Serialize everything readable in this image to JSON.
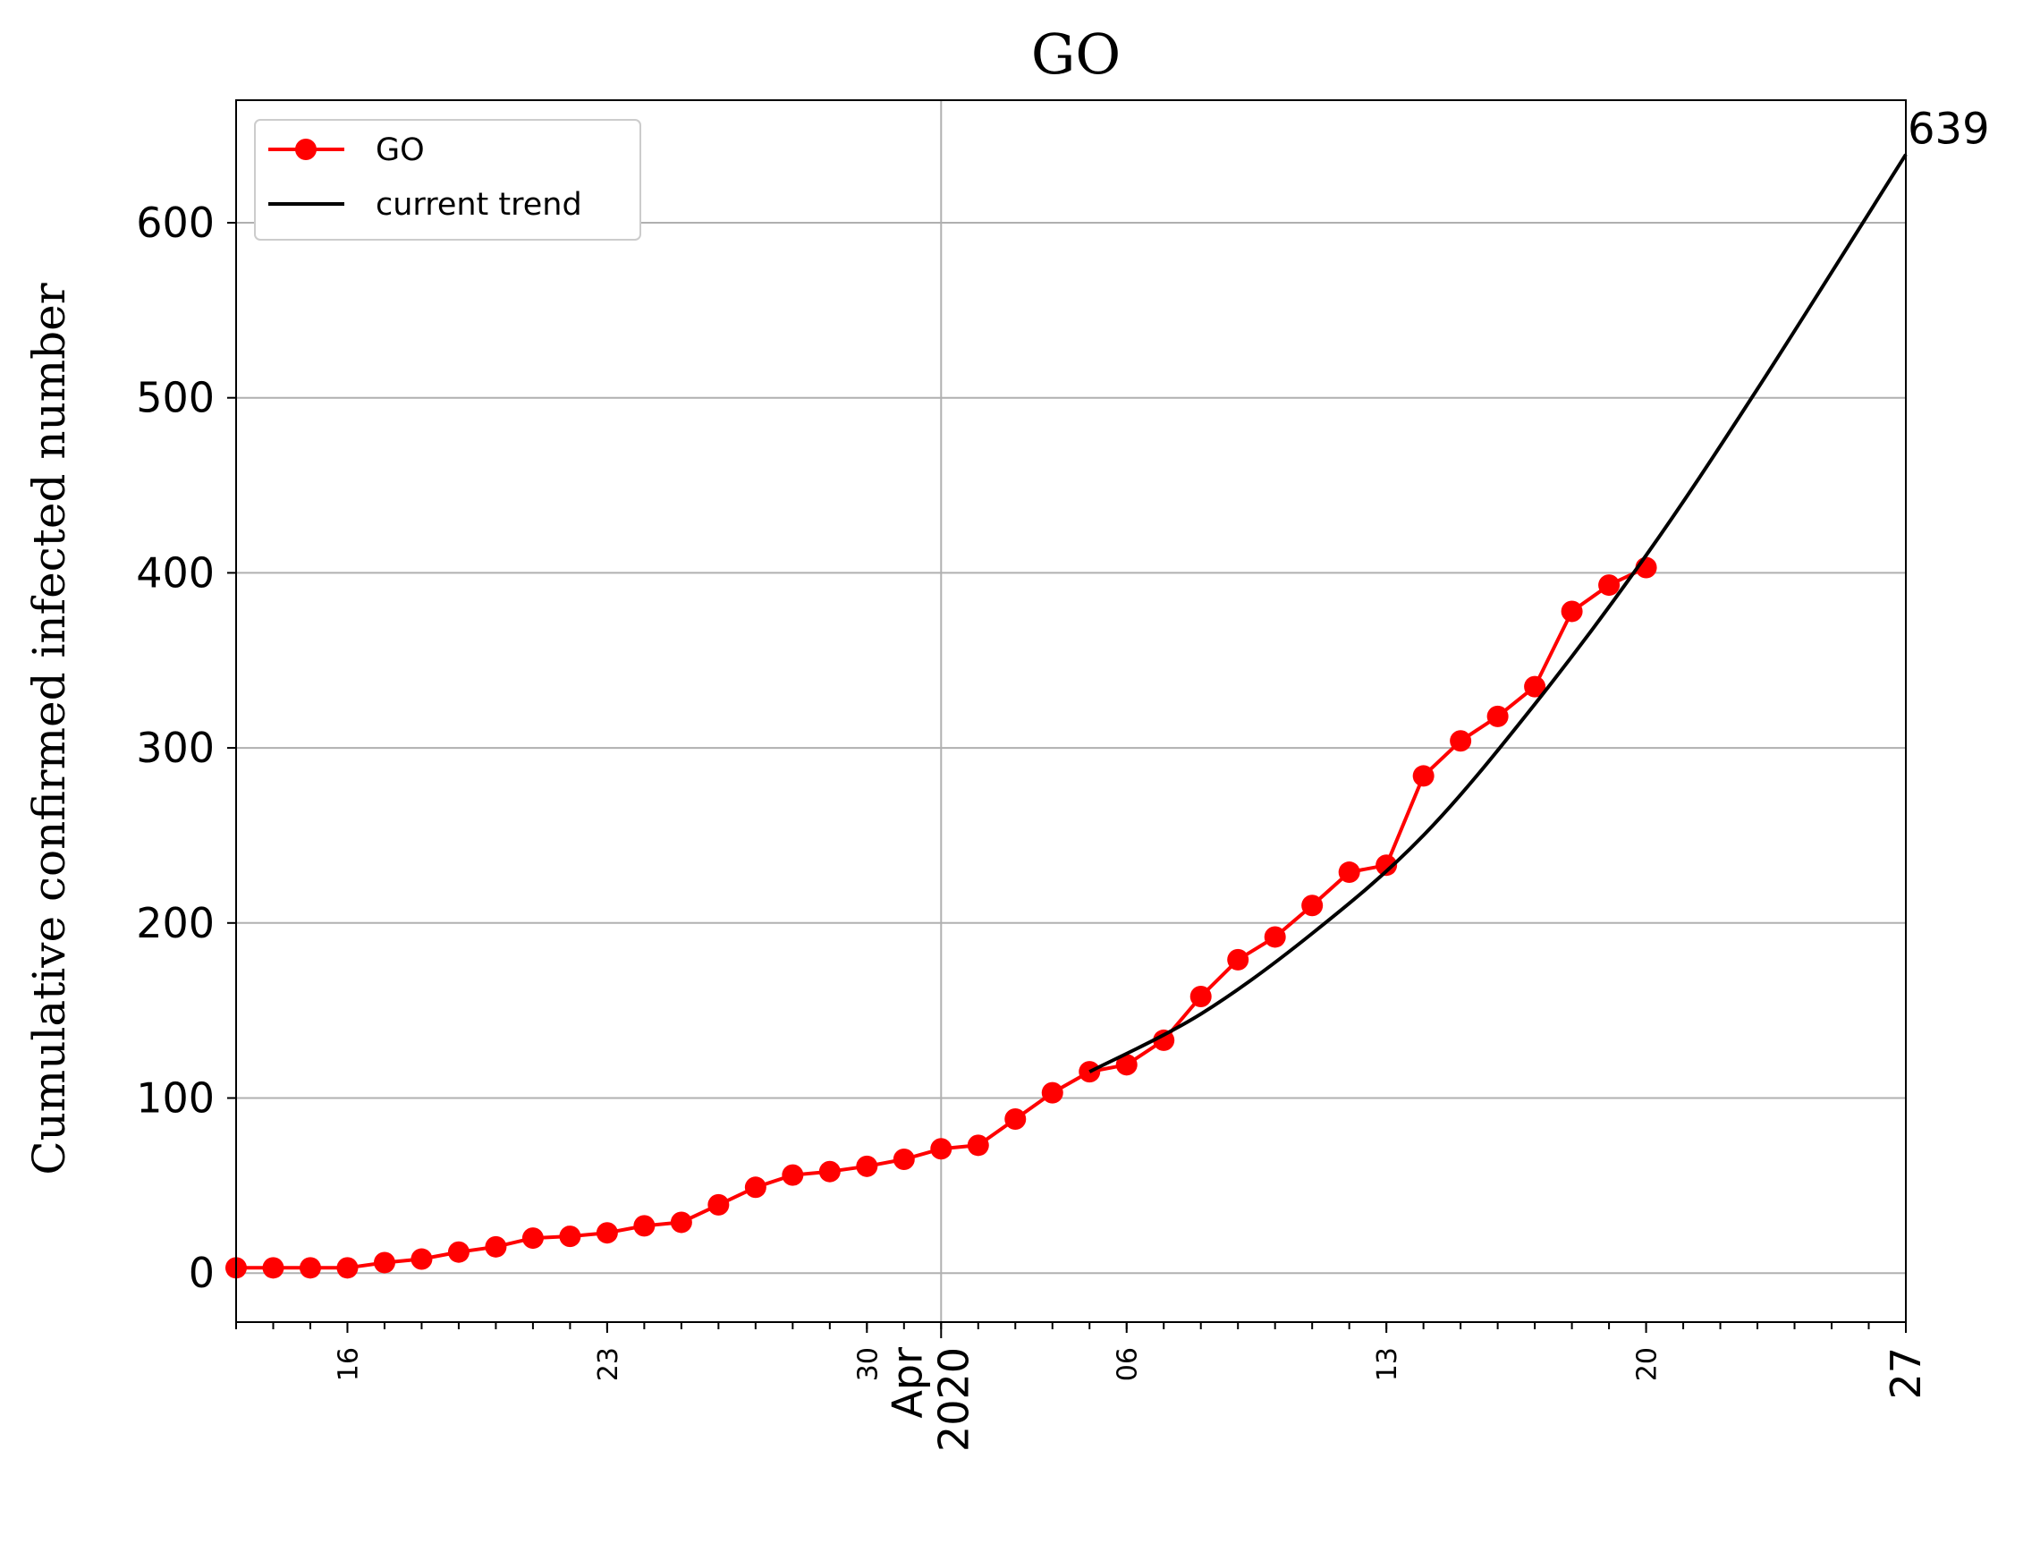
{
  "chart_data": {
    "type": "line",
    "title": "GO",
    "xlabel": "",
    "ylabel": "Cumulative confirmed infected number",
    "ylim": [
      -28,
      670
    ],
    "xlim": [
      "2020-03-13",
      "2020-04-27"
    ],
    "grid": true,
    "legend_position": "top-left",
    "y_ticks": [
      0,
      100,
      200,
      300,
      400,
      500,
      600
    ],
    "x_ticks": [
      {
        "date": "2020-03-16",
        "label": "16"
      },
      {
        "date": "2020-03-23",
        "label": "23"
      },
      {
        "date": "2020-03-30",
        "label": "30"
      },
      {
        "date": "2020-04-01",
        "label": "Apr\n2020"
      },
      {
        "date": "2020-04-06",
        "label": "06"
      },
      {
        "date": "2020-04-13",
        "label": "13"
      },
      {
        "date": "2020-04-20",
        "label": "20"
      },
      {
        "date": "2020-04-27",
        "label": "27"
      }
    ],
    "series": [
      {
        "name": "GO",
        "color": "#ff0000",
        "marker": "circle",
        "x": [
          "2020-03-13",
          "2020-03-14",
          "2020-03-15",
          "2020-03-16",
          "2020-03-17",
          "2020-03-18",
          "2020-03-19",
          "2020-03-20",
          "2020-03-21",
          "2020-03-22",
          "2020-03-23",
          "2020-03-24",
          "2020-03-25",
          "2020-03-26",
          "2020-03-27",
          "2020-03-28",
          "2020-03-29",
          "2020-03-30",
          "2020-03-31",
          "2020-04-01",
          "2020-04-02",
          "2020-04-03",
          "2020-04-04",
          "2020-04-05",
          "2020-04-06",
          "2020-04-07",
          "2020-04-08",
          "2020-04-09",
          "2020-04-10",
          "2020-04-11",
          "2020-04-12",
          "2020-04-13",
          "2020-04-14",
          "2020-04-15",
          "2020-04-16",
          "2020-04-17",
          "2020-04-18",
          "2020-04-19",
          "2020-04-20"
        ],
        "values": [
          3,
          3,
          3,
          3,
          6,
          8,
          12,
          15,
          20,
          21,
          23,
          27,
          29,
          39,
          49,
          56,
          58,
          61,
          65,
          71,
          73,
          88,
          103,
          115,
          119,
          133,
          158,
          179,
          192,
          210,
          229,
          233,
          284,
          304,
          318,
          335,
          378,
          393,
          403
        ]
      },
      {
        "name": "current trend",
        "color": "#000000",
        "marker": "none",
        "x": [
          "2020-04-05",
          "2020-04-08",
          "2020-04-11",
          "2020-04-14",
          "2020-04-17",
          "2020-04-20",
          "2020-04-23",
          "2020-04-27"
        ],
        "values": [
          115,
          148,
          194,
          250,
          325,
          410,
          505,
          639
        ]
      }
    ],
    "annotations": [
      {
        "text": "639",
        "x": "2020-04-27",
        "y": 639
      }
    ]
  }
}
